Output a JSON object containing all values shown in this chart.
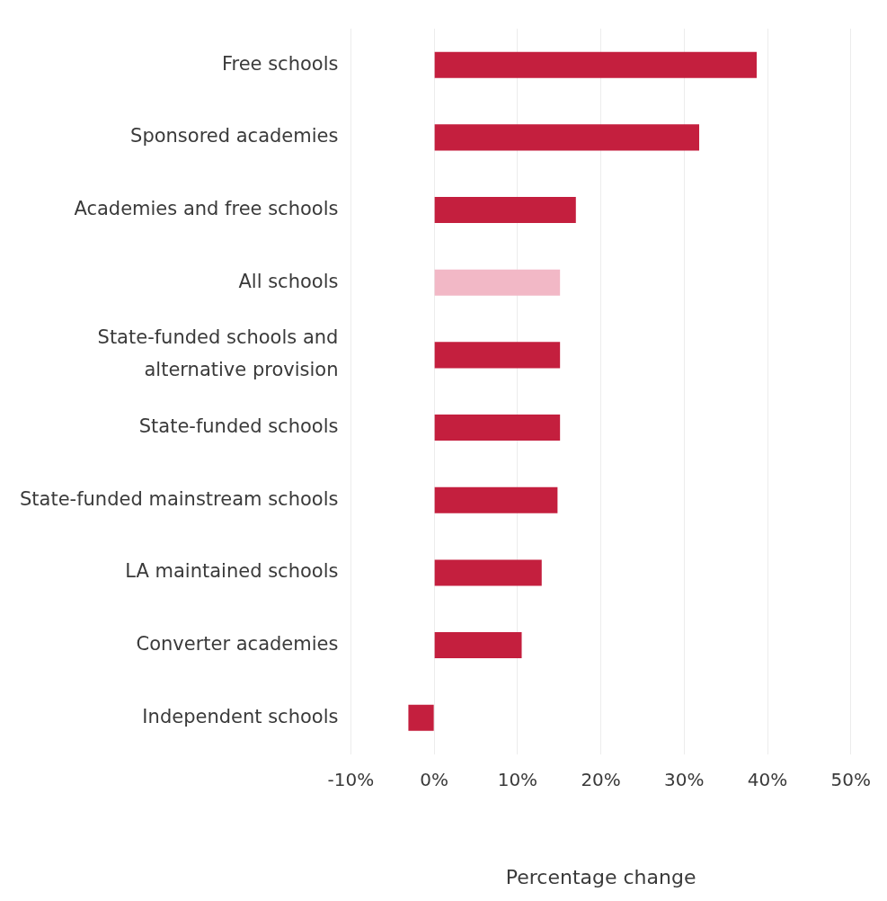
{
  "chart_data": {
    "type": "bar",
    "orientation": "horizontal",
    "xlabel": "Percentage change",
    "categories": [
      "Free schools",
      "Sponsored academies",
      "Academies and free schools",
      "All schools",
      "State-funded schools and alternative provision",
      "State-funded schools",
      "State-funded mainstream schools",
      "LA maintained schools",
      "Converter academies",
      "Independent schools"
    ],
    "values": [
      38.7,
      31.8,
      17.0,
      15.1,
      15.1,
      15.1,
      14.8,
      12.9,
      10.5,
      -3.1
    ],
    "colors": [
      "#c41f3e",
      "#c41f3e",
      "#c41f3e",
      "#f2b8c6",
      "#c41f3e",
      "#c41f3e",
      "#c41f3e",
      "#c41f3e",
      "#c41f3e",
      "#c41f3e"
    ],
    "xlim": [
      -10,
      50
    ],
    "xticks": [
      {
        "value": -10,
        "label": "-10%"
      },
      {
        "value": 0,
        "label": "0%"
      },
      {
        "value": 10,
        "label": "10%"
      },
      {
        "value": 20,
        "label": "20%"
      },
      {
        "value": 30,
        "label": "30%"
      },
      {
        "value": 40,
        "label": "40%"
      },
      {
        "value": 50,
        "label": "50%"
      }
    ],
    "grid": "x",
    "legend": false
  }
}
